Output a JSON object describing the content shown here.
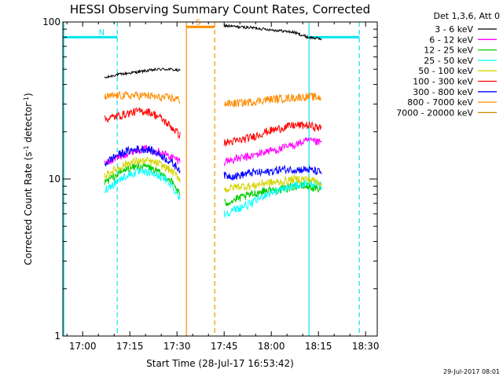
{
  "chart_data": {
    "type": "line",
    "title": "HESSI Observing Summary Count Rates, Corrected",
    "xlabel": "Start Time (28-Jul-17 16:53:42)",
    "ylabel_main": "Corrected Count Rate (s",
    "ylabel_sup1": "-1",
    "ylabel_mid": " detector",
    "ylabel_sup2": "-1",
    "ylabel_end": ")",
    "yscale": "log",
    "ylim": [
      1,
      100
    ],
    "xlim": [
      "16:53:42",
      "18:33:42"
    ],
    "xticks": [
      "17:00",
      "17:15",
      "17:30",
      "17:45",
      "18:00",
      "18:15",
      "18:30"
    ],
    "yticks": [
      "1",
      "10",
      "100"
    ],
    "legend_title": "Det 1,3,6, Att 0",
    "legend_position": "top-right",
    "timestamp": "29-Jul-2017 08:01",
    "series": [
      {
        "name": "3 - 6 keV",
        "color": "#000000",
        "segments": [
          {
            "start": "17:07",
            "end": "17:31",
            "values": [
              44,
              46,
              47,
              48,
              49,
              50,
              50,
              49
            ]
          },
          {
            "start": "17:45",
            "end": "18:16",
            "values": [
              95,
              93,
              92,
              90,
              88,
              86,
              80,
              78
            ]
          }
        ]
      },
      {
        "name": "6 - 12 keV",
        "color": "#ff00ff",
        "segments": [
          {
            "start": "17:07",
            "end": "17:31",
            "values": [
              12.5,
              13.5,
              14.5,
              15.5,
              15.5,
              15,
              14,
              13
            ]
          },
          {
            "start": "17:45",
            "end": "18:16",
            "values": [
              13,
              13.5,
              14,
              15,
              15.5,
              16.5,
              17.5,
              17
            ]
          }
        ]
      },
      {
        "name": "12 - 25 keV",
        "color": "#00cc00",
        "segments": [
          {
            "start": "17:07",
            "end": "17:31",
            "values": [
              9.5,
              10.5,
              11.5,
              12,
              12,
              11,
              10,
              8
            ]
          },
          {
            "start": "17:45",
            "end": "18:16",
            "values": [
              7,
              7.5,
              8,
              8.5,
              8.5,
              9,
              9,
              8.5
            ]
          }
        ]
      },
      {
        "name": "25 - 50 keV",
        "color": "#00ffff",
        "segments": [
          {
            "start": "17:07",
            "end": "17:31",
            "values": [
              8.5,
              9.5,
              10.5,
              11,
              11,
              10.5,
              9.5,
              7.5
            ]
          },
          {
            "start": "17:45",
            "end": "18:16",
            "values": [
              6,
              6.5,
              7,
              8,
              8.5,
              9,
              9.5,
              9
            ]
          }
        ]
      },
      {
        "name": "50 - 100 keV",
        "color": "#d4d400",
        "segments": [
          {
            "start": "17:07",
            "end": "17:31",
            "values": [
              10.5,
              11.5,
              12.5,
              13,
              13,
              12.5,
              11.5,
              10
            ]
          },
          {
            "start": "17:45",
            "end": "18:16",
            "values": [
              8.5,
              9,
              9,
              9.5,
              9.5,
              10,
              10,
              9.5
            ]
          }
        ]
      },
      {
        "name": "100 - 300 keV",
        "color": "#ff0000",
        "segments": [
          {
            "start": "17:07",
            "end": "17:31",
            "values": [
              24,
              25,
              26,
              27,
              27,
              25,
              22,
              19
            ]
          },
          {
            "start": "17:45",
            "end": "18:16",
            "values": [
              17,
              17.5,
              18.5,
              20,
              21,
              22,
              22,
              21
            ]
          }
        ]
      },
      {
        "name": "300 - 800 keV",
        "color": "#0000ff",
        "segments": [
          {
            "start": "17:07",
            "end": "17:31",
            "values": [
              12.5,
              14,
              15,
              15.5,
              15.5,
              14.5,
              13,
              11.5
            ]
          },
          {
            "start": "17:45",
            "end": "18:16",
            "values": [
              10.5,
              10.5,
              11,
              11,
              11.5,
              11.5,
              11.5,
              11
            ]
          }
        ]
      },
      {
        "name": "800 - 7000 keV",
        "color": "#ff8c00",
        "segments": [
          {
            "start": "17:07",
            "end": "17:31",
            "values": [
              33,
              34,
              34,
              34,
              34,
              33,
              33,
              32
            ]
          },
          {
            "start": "17:45",
            "end": "18:16",
            "values": [
              30,
              30.5,
              31,
              32,
              32.5,
              33,
              33.5,
              33
            ]
          }
        ]
      },
      {
        "name": "7000 - 20000 keV",
        "color": "#cc8800",
        "segments": []
      }
    ],
    "annotations": [
      {
        "label": "N",
        "color": "#00e5ee",
        "bar_value": 80,
        "bar_start": "16:54",
        "bar_end": "17:11",
        "solid_line": "16:54",
        "dashed_line": "17:11"
      },
      {
        "label": "",
        "color": "#00e5ee",
        "bar_value": 80,
        "bar_start": "18:12",
        "bar_end": "18:28",
        "solid_line": "18:12",
        "dashed_line": "18:28"
      },
      {
        "label": "S",
        "color": "#ff8c00",
        "bar_value": 93,
        "bar_start": "17:33",
        "bar_end": "17:42",
        "solid_line": "17:33",
        "dashed_line": "17:42"
      }
    ]
  }
}
